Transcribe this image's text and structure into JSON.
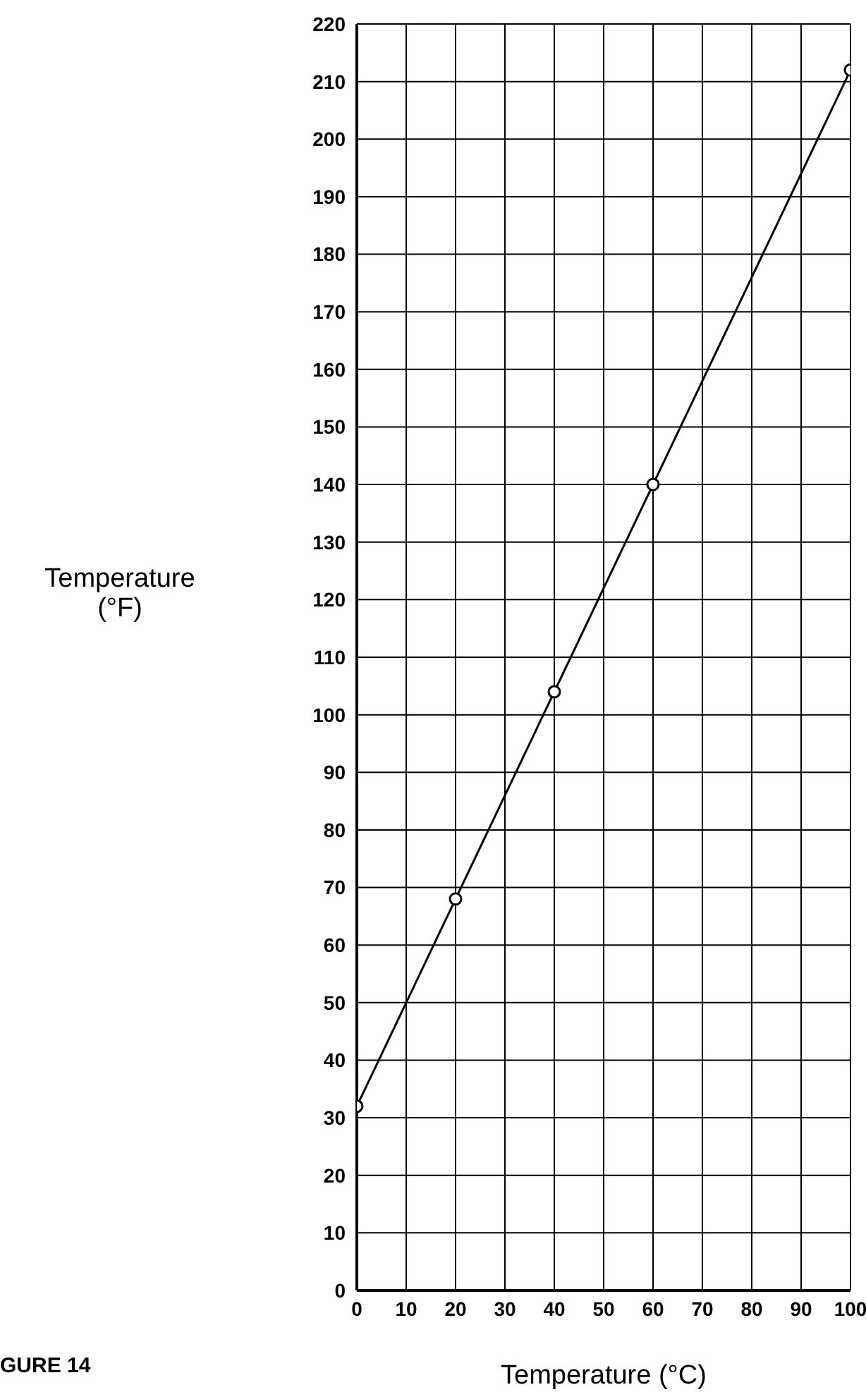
{
  "chart_data": {
    "type": "line",
    "xlabel": "Temperature (°C)",
    "ylabel": "Temperature\n(°F)",
    "x": [
      0,
      20,
      40,
      60,
      100
    ],
    "series": [
      {
        "color": "#000000",
        "values": [
          32,
          68,
          104,
          140,
          212
        ]
      }
    ],
    "xlim": [
      0,
      100
    ],
    "xticks": [
      0,
      10,
      20,
      30,
      40,
      50,
      60,
      70,
      80,
      90,
      100
    ],
    "ylim": [
      0,
      220
    ],
    "yticks": [
      0,
      10,
      20,
      30,
      40,
      50,
      60,
      70,
      80,
      90,
      100,
      110,
      120,
      130,
      140,
      150,
      160,
      170,
      180,
      190,
      200,
      210,
      220
    ],
    "grid": true,
    "marker": "circle",
    "line_style": "solid",
    "legend": false,
    "annotations": [
      "GURE 14"
    ]
  }
}
